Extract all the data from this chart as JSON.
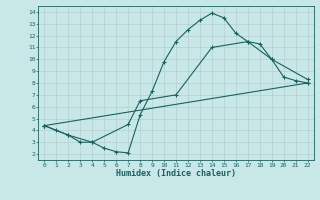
{
  "xlabel": "Humidex (Indice chaleur)",
  "bg_color": "#c8e8e8",
  "grid_color": "#b0c8c8",
  "line_color": "#1a6060",
  "spine_color": "#1a6060",
  "xlim": [
    -0.5,
    22.5
  ],
  "ylim": [
    1.5,
    14.5
  ],
  "xticks": [
    0,
    1,
    2,
    3,
    4,
    5,
    6,
    7,
    8,
    9,
    10,
    11,
    12,
    13,
    14,
    15,
    16,
    17,
    18,
    19,
    20,
    21,
    22
  ],
  "yticks": [
    2,
    3,
    4,
    5,
    6,
    7,
    8,
    9,
    10,
    11,
    12,
    13,
    14
  ],
  "line1_x": [
    0,
    1,
    2,
    3,
    4,
    5,
    6,
    7,
    8,
    9,
    10,
    11,
    12,
    13,
    14,
    15,
    16,
    17,
    18,
    19,
    20,
    21,
    22
  ],
  "line1_y": [
    4.4,
    4.0,
    3.6,
    3.0,
    3.0,
    2.5,
    2.2,
    2.1,
    5.3,
    7.3,
    9.8,
    11.5,
    12.5,
    13.3,
    13.9,
    13.5,
    12.2,
    11.5,
    11.3,
    10.0,
    8.5,
    8.2,
    8.0
  ],
  "line2_x": [
    0,
    2,
    4,
    7,
    8,
    11,
    14,
    17,
    19,
    22
  ],
  "line2_y": [
    4.4,
    3.6,
    3.0,
    4.5,
    6.5,
    7.0,
    11.0,
    11.5,
    10.0,
    8.3
  ],
  "line3_x": [
    0,
    22
  ],
  "line3_y": [
    4.4,
    8.0
  ]
}
